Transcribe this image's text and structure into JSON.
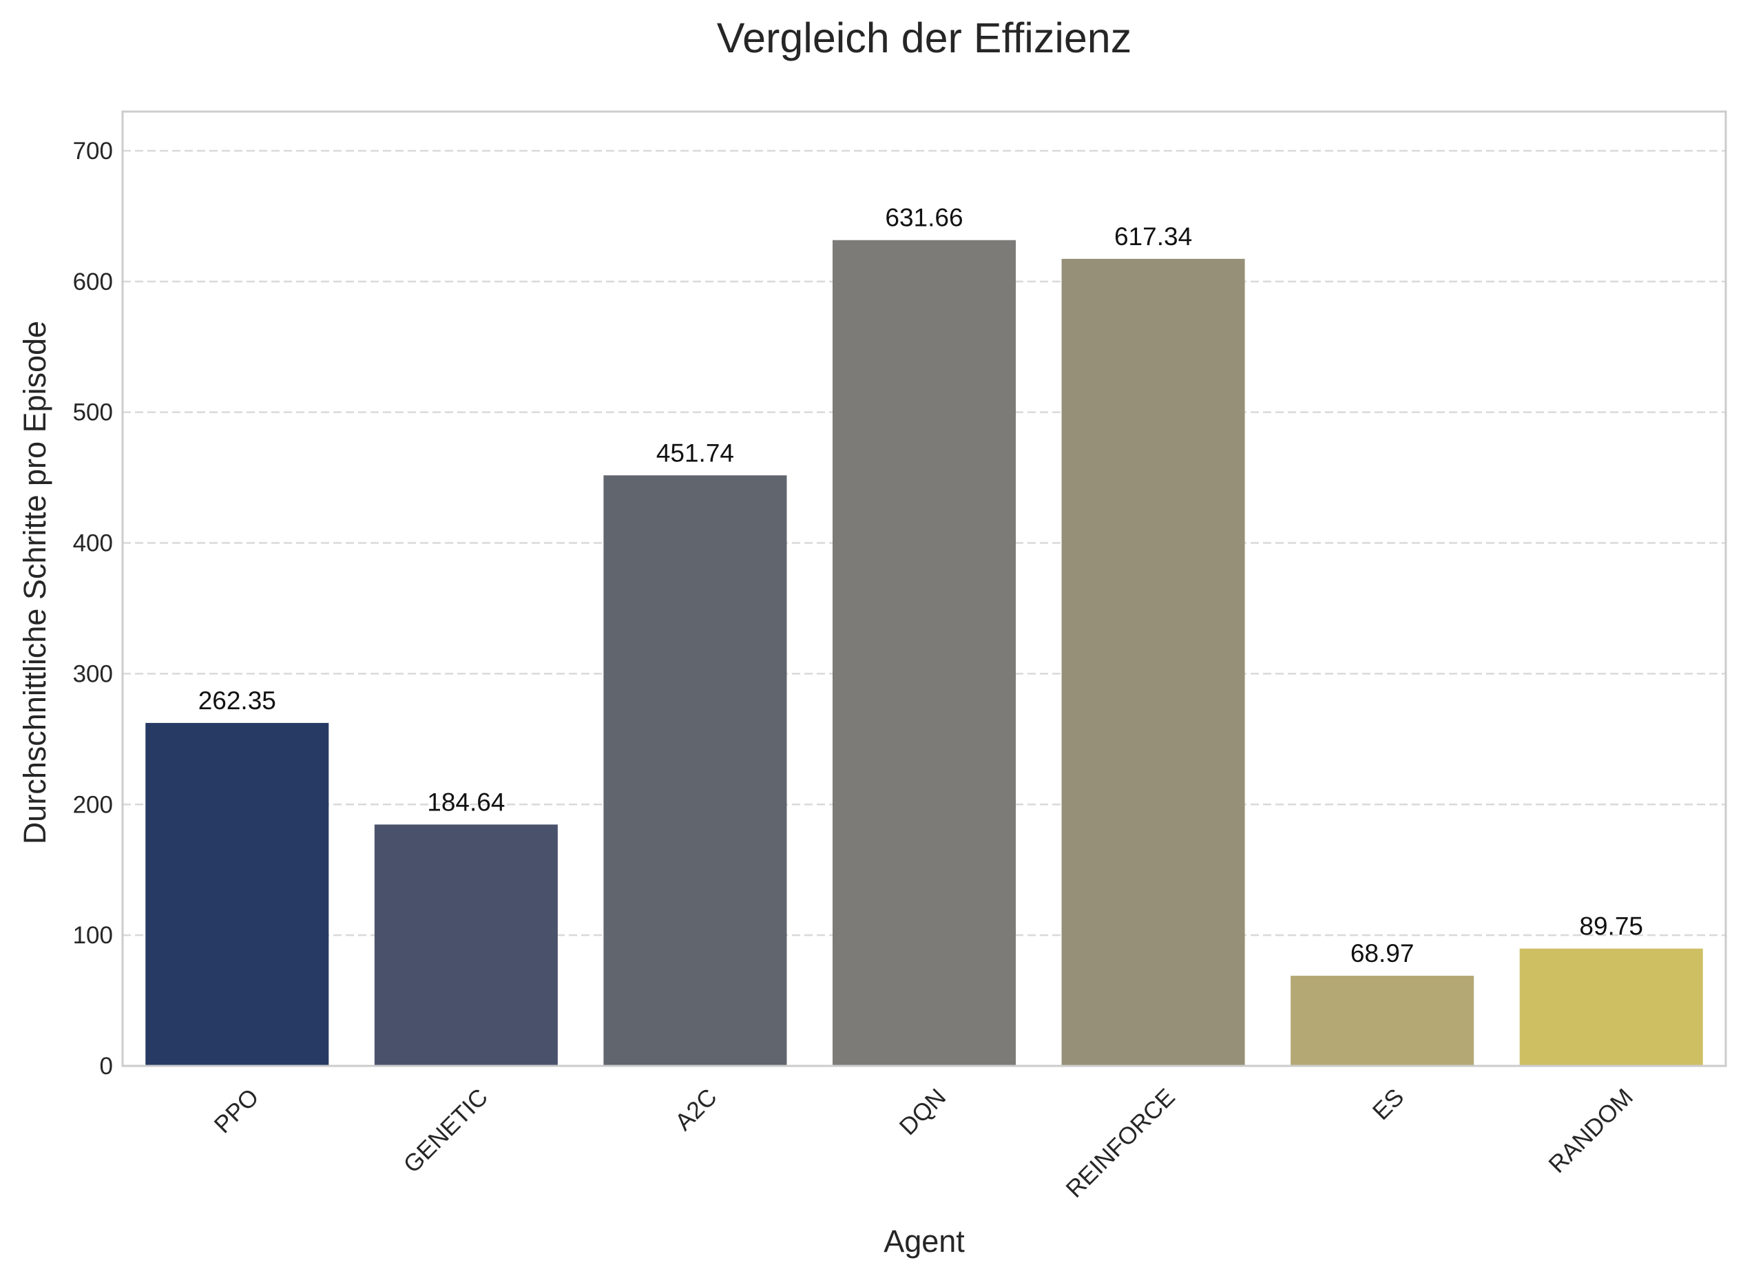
{
  "chart_data": {
    "type": "bar",
    "title": "Vergleich der Effizienz",
    "xlabel": "Agent",
    "ylabel": "Durchschnittliche Schritte pro Episode",
    "categories": [
      "PPO",
      "GENETIC",
      "A2C",
      "DQN",
      "REINFORCE",
      "ES",
      "RANDOM"
    ],
    "values": [
      262.35,
      184.64,
      451.74,
      631.66,
      617.34,
      68.97,
      89.75
    ],
    "value_labels": [
      "262.35",
      "184.64",
      "451.74",
      "631.66",
      "617.34",
      "68.97",
      "89.75"
    ],
    "colors": [
      "#273a64",
      "#4a526b",
      "#61656e",
      "#7c7b78",
      "#979079",
      "#b4a874",
      "#cebf63"
    ],
    "ylim": [
      0,
      730
    ],
    "yticks": [
      0,
      100,
      200,
      300,
      400,
      500,
      600,
      700
    ],
    "grid": true,
    "grid_axis": "y",
    "grid_style": "dashed",
    "legend": "none"
  }
}
